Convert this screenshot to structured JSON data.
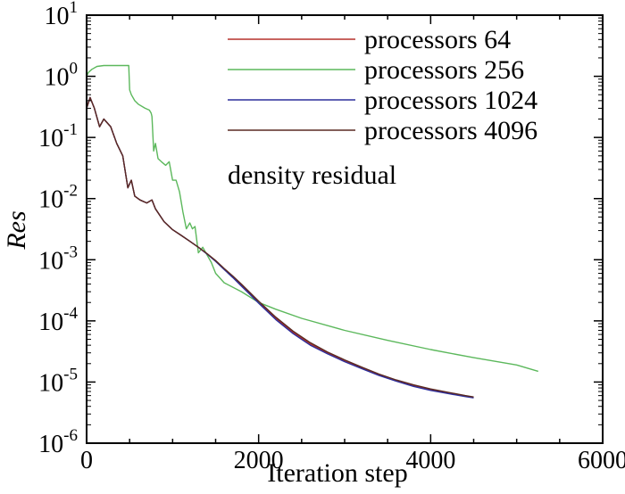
{
  "chart_data": {
    "type": "line",
    "title": "",
    "xlabel": "Iteration step",
    "ylabel": "Res",
    "xlim": [
      0,
      6000
    ],
    "ylim": [
      1e-06,
      10
    ],
    "yscale": "log",
    "grid": false,
    "legend_position": "top-right",
    "annotation": "density residual",
    "x_ticks": [
      {
        "value": 0,
        "label": "0"
      },
      {
        "value": 2000,
        "label": "2000"
      },
      {
        "value": 4000,
        "label": "4000"
      },
      {
        "value": 6000,
        "label": "6000"
      }
    ],
    "y_ticks": [
      {
        "value": 10,
        "base": "10",
        "exp": "1"
      },
      {
        "value": 1,
        "base": "10",
        "exp": "0"
      },
      {
        "value": 0.1,
        "base": "10",
        "exp": "-1"
      },
      {
        "value": 0.01,
        "base": "10",
        "exp": "-2"
      },
      {
        "value": 0.001,
        "base": "10",
        "exp": "-3"
      },
      {
        "value": 0.0001,
        "base": "10",
        "exp": "-4"
      },
      {
        "value": 1e-05,
        "base": "10",
        "exp": "-5"
      },
      {
        "value": 1e-06,
        "base": "10",
        "exp": "-6"
      }
    ],
    "series": [
      {
        "name": "processors 64",
        "color": "#b5302a",
        "x": [
          0,
          40,
          90,
          150,
          200,
          280,
          350,
          420,
          480,
          520,
          560,
          620,
          700,
          760,
          800,
          900,
          1000,
          1100,
          1200,
          1300,
          1400,
          1500,
          1600,
          1700,
          1800,
          1900,
          2000,
          2200,
          2400,
          2600,
          2800,
          3000,
          3200,
          3400,
          3600,
          3800,
          4000,
          4200,
          4400,
          4500
        ],
        "y": [
          0.3,
          0.45,
          0.3,
          0.15,
          0.2,
          0.15,
          0.08,
          0.05,
          0.015,
          0.02,
          0.011,
          0.0095,
          0.0085,
          0.0095,
          0.0068,
          0.0042,
          0.0031,
          0.0025,
          0.002,
          0.0016,
          0.00125,
          0.00095,
          0.0007,
          0.00052,
          0.00038,
          0.00028,
          0.0002,
          0.00011,
          6.5e-05,
          4.2e-05,
          3e-05,
          2.2e-05,
          1.7e-05,
          1.3e-05,
          1.05e-05,
          8.7e-06,
          7.5e-06,
          6.6e-06,
          5.9e-06,
          5.6e-06
        ]
      },
      {
        "name": "processors 256",
        "color": "#5cb85c",
        "x": [
          0,
          20,
          60,
          120,
          200,
          300,
          400,
          490,
          500,
          520,
          560,
          600,
          680,
          730,
          750,
          760,
          780,
          800,
          830,
          870,
          920,
          960,
          1000,
          1040,
          1080,
          1120,
          1160,
          1200,
          1230,
          1260,
          1300,
          1350,
          1400,
          1450,
          1500,
          1600,
          1800,
          2000,
          2200,
          2500,
          3000,
          3500,
          4000,
          4500,
          5000,
          5250
        ],
        "y": [
          1.0,
          1.15,
          1.3,
          1.45,
          1.5,
          1.5,
          1.5,
          1.5,
          0.6,
          0.5,
          0.4,
          0.35,
          0.3,
          0.28,
          0.25,
          0.22,
          0.06,
          0.08,
          0.045,
          0.04,
          0.035,
          0.04,
          0.02,
          0.02,
          0.013,
          0.006,
          0.0032,
          0.004,
          0.0032,
          0.0035,
          0.0013,
          0.0016,
          0.0012,
          0.0009,
          0.0006,
          0.00042,
          0.0003,
          0.0002,
          0.000155,
          0.00011,
          7e-05,
          4.8e-05,
          3.4e-05,
          2.5e-05,
          1.9e-05,
          1.5e-05
        ]
      },
      {
        "name": "processors 1024",
        "color": "#2b2e9c",
        "x": [
          0,
          40,
          90,
          150,
          200,
          280,
          350,
          420,
          480,
          520,
          560,
          620,
          700,
          760,
          800,
          900,
          1000,
          1100,
          1200,
          1300,
          1400,
          1500,
          1600,
          1700,
          1800,
          1900,
          2000,
          2200,
          2400,
          2600,
          2800,
          3000,
          3200,
          3400,
          3600,
          3800,
          4000,
          4200,
          4400,
          4500
        ],
        "y": [
          0.3,
          0.45,
          0.3,
          0.15,
          0.2,
          0.15,
          0.08,
          0.05,
          0.015,
          0.02,
          0.011,
          0.0095,
          0.0085,
          0.0095,
          0.0068,
          0.0042,
          0.0031,
          0.0025,
          0.002,
          0.0016,
          0.00124,
          0.00094,
          0.00069,
          0.00051,
          0.00037,
          0.00027,
          0.000195,
          0.000105,
          6.2e-05,
          4e-05,
          2.9e-05,
          2.15e-05,
          1.65e-05,
          1.28e-05,
          1.03e-05,
          8.5e-06,
          7.3e-06,
          6.5e-06,
          5.8e-06,
          5.5e-06
        ]
      },
      {
        "name": "processors 4096",
        "color": "#5a2a22",
        "x": [
          0,
          40,
          90,
          150,
          200,
          280,
          350,
          420,
          480,
          520,
          560,
          620,
          700,
          760,
          800,
          900,
          1000,
          1100,
          1200,
          1300,
          1400,
          1500,
          1600,
          1700,
          1800,
          1900,
          2000,
          2200,
          2400,
          2600,
          2800,
          3000,
          3200,
          3400,
          3600,
          3800,
          4000,
          4200,
          4400,
          4500
        ],
        "y": [
          0.3,
          0.45,
          0.3,
          0.15,
          0.2,
          0.15,
          0.08,
          0.05,
          0.015,
          0.02,
          0.011,
          0.0095,
          0.0085,
          0.0095,
          0.0068,
          0.0042,
          0.0031,
          0.0025,
          0.002,
          0.0016,
          0.00126,
          0.00097,
          0.00072,
          0.00054,
          0.0004,
          0.00029,
          0.00021,
          0.000115,
          6.8e-05,
          4.4e-05,
          3.1e-05,
          2.3e-05,
          1.75e-05,
          1.35e-05,
          1.08e-05,
          9e-06,
          7.7e-06,
          6.8e-06,
          6e-06,
          5.7e-06
        ]
      }
    ]
  }
}
